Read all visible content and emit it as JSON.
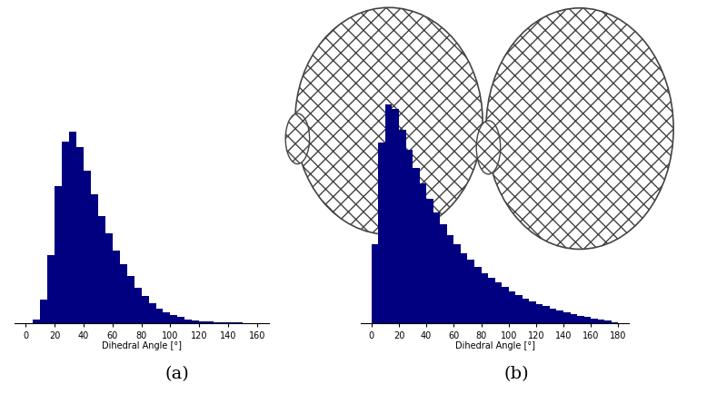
{
  "chart_data": [
    {
      "type": "histogram",
      "annotation": "(a)",
      "x_label": "Dihedral Angle [°]",
      "bins": [
        0,
        5,
        10,
        15,
        20,
        25,
        30,
        35,
        40,
        45,
        50,
        55,
        60,
        65,
        70,
        75,
        80,
        85,
        90,
        95,
        100,
        105,
        110,
        115,
        120,
        125,
        130,
        135,
        140,
        145,
        150,
        155,
        160,
        165
      ],
      "values": [
        0,
        0.02,
        0.12,
        0.35,
        0.7,
        0.93,
        0.98,
        0.9,
        0.78,
        0.66,
        0.55,
        0.46,
        0.37,
        0.3,
        0.24,
        0.18,
        0.14,
        0.1,
        0.075,
        0.055,
        0.04,
        0.03,
        0.02,
        0.015,
        0.01,
        0.008,
        0.005,
        0.004,
        0.003,
        0.002,
        0.001,
        0,
        0
      ],
      "color": "#000080",
      "xlim": [
        -8,
        168
      ],
      "xticks": [
        0,
        20,
        40,
        60,
        80,
        100,
        120,
        140,
        160
      ],
      "ylim": [
        0,
        1.05
      ],
      "tick_labels": "x"
    },
    {
      "type": "histogram",
      "annotation": "(b)",
      "x_label": "Dihedral Angle [°]",
      "bins": [
        0,
        5,
        10,
        15,
        20,
        25,
        30,
        35,
        40,
        45,
        50,
        55,
        60,
        65,
        70,
        75,
        80,
        85,
        90,
        95,
        100,
        105,
        110,
        115,
        120,
        125,
        130,
        135,
        140,
        145,
        150,
        155,
        160,
        165,
        170,
        175,
        180
      ],
      "values": [
        0.35,
        0.8,
        0.97,
        0.95,
        0.86,
        0.77,
        0.69,
        0.62,
        0.55,
        0.49,
        0.44,
        0.39,
        0.35,
        0.31,
        0.28,
        0.25,
        0.22,
        0.2,
        0.18,
        0.16,
        0.14,
        0.125,
        0.11,
        0.095,
        0.085,
        0.075,
        0.065,
        0.055,
        0.048,
        0.04,
        0.033,
        0.027,
        0.02,
        0.015,
        0.01,
        0.005
      ],
      "color": "#000080",
      "xlim": [
        -8,
        188
      ],
      "xticks": [
        0,
        20,
        40,
        60,
        80,
        100,
        120,
        140,
        160,
        180
      ],
      "ylim": [
        0,
        1.05
      ],
      "tick_labels": "x"
    }
  ]
}
